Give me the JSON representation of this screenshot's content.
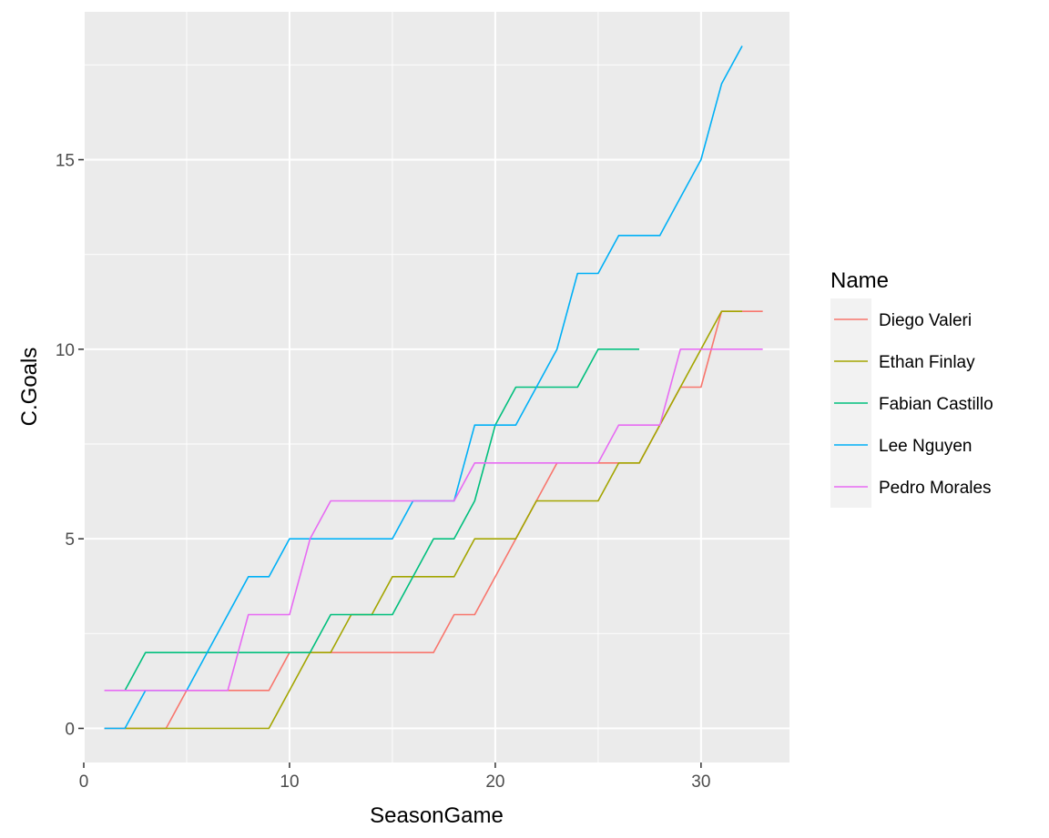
{
  "chart_data": {
    "type": "line",
    "xlabel": "SeasonGame",
    "ylabel": "C.Goals",
    "xlim": [
      0,
      34.3
    ],
    "ylim": [
      -0.9,
      18.9
    ],
    "xticks": [
      0,
      10,
      20,
      30
    ],
    "yticks": [
      0,
      5,
      10,
      15
    ],
    "grid": true,
    "legend": {
      "title": "Name",
      "position": "right"
    },
    "series": [
      {
        "name": "Diego Valeri",
        "color": "#F8766D",
        "x": [
          1,
          2,
          3,
          4,
          5,
          6,
          7,
          8,
          9,
          10,
          11,
          12,
          13,
          14,
          15,
          16,
          17,
          18,
          19,
          20,
          21,
          22,
          23,
          24,
          25,
          26,
          27,
          28,
          29,
          30,
          31,
          32,
          33
        ],
        "y": [
          0,
          0,
          0,
          0,
          1,
          1,
          1,
          1,
          1,
          2,
          2,
          2,
          2,
          2,
          2,
          2,
          2,
          3,
          3,
          4,
          5,
          6,
          7,
          7,
          7,
          7,
          7,
          8,
          9,
          9,
          11,
          11,
          11
        ]
      },
      {
        "name": "Ethan Finlay",
        "color": "#A3A500",
        "x": [
          2,
          3,
          4,
          5,
          6,
          7,
          8,
          9,
          10,
          11,
          12,
          13,
          14,
          15,
          16,
          17,
          18,
          19,
          20,
          21,
          22,
          23,
          24,
          25,
          26,
          27,
          28,
          29,
          30,
          31,
          32
        ],
        "y": [
          0,
          0,
          0,
          0,
          0,
          0,
          0,
          0,
          1,
          2,
          2,
          3,
          3,
          4,
          4,
          4,
          4,
          5,
          5,
          5,
          6,
          6,
          6,
          6,
          7,
          7,
          8,
          9,
          10,
          11,
          11
        ]
      },
      {
        "name": "Fabian Castillo",
        "color": "#00BF7D",
        "x": [
          2,
          3,
          4,
          5,
          6,
          7,
          8,
          9,
          10,
          11,
          12,
          13,
          14,
          15,
          16,
          17,
          18,
          19,
          20,
          21,
          22,
          23,
          24,
          25,
          26,
          27
        ],
        "y": [
          1,
          2,
          2,
          2,
          2,
          2,
          2,
          2,
          2,
          2,
          3,
          3,
          3,
          3,
          4,
          5,
          5,
          6,
          8,
          9,
          9,
          9,
          9,
          10,
          10,
          10
        ]
      },
      {
        "name": "Lee Nguyen",
        "color": "#00B0F6",
        "x": [
          1,
          2,
          3,
          4,
          5,
          6,
          7,
          8,
          9,
          10,
          11,
          12,
          13,
          14,
          15,
          16,
          17,
          18,
          19,
          20,
          21,
          22,
          23,
          24,
          25,
          26,
          27,
          28,
          29,
          30,
          31,
          32
        ],
        "y": [
          0,
          0,
          1,
          1,
          1,
          2,
          3,
          4,
          4,
          5,
          5,
          5,
          5,
          5,
          5,
          6,
          6,
          6,
          8,
          8,
          8,
          9,
          10,
          12,
          12,
          13,
          13,
          13,
          14,
          15,
          17,
          18
        ]
      },
      {
        "name": "Pedro Morales",
        "color": "#E76BF3",
        "x": [
          1,
          2,
          3,
          4,
          5,
          6,
          7,
          8,
          9,
          10,
          11,
          12,
          13,
          14,
          15,
          16,
          17,
          18,
          19,
          20,
          21,
          22,
          23,
          24,
          25,
          26,
          27,
          28,
          29,
          30,
          31,
          32,
          33
        ],
        "y": [
          1,
          1,
          1,
          1,
          1,
          1,
          1,
          3,
          3,
          3,
          5,
          6,
          6,
          6,
          6,
          6,
          6,
          6,
          7,
          7,
          7,
          7,
          7,
          7,
          7,
          8,
          8,
          8,
          10,
          10,
          10,
          10,
          10
        ]
      }
    ]
  }
}
